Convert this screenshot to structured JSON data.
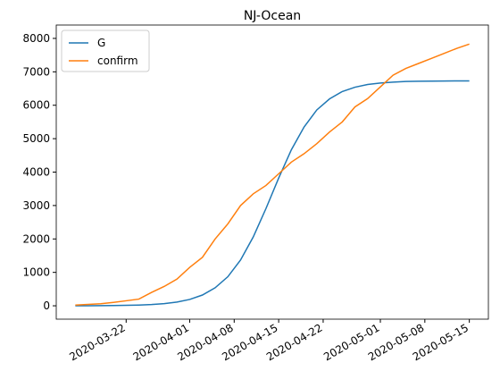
{
  "chart_data": {
    "type": "line",
    "title": "NJ-Ocean",
    "x": [
      "2020-03-14",
      "2020-03-16",
      "2020-03-18",
      "2020-03-20",
      "2020-03-22",
      "2020-03-24",
      "2020-03-26",
      "2020-03-28",
      "2020-03-30",
      "2020-04-01",
      "2020-04-03",
      "2020-04-05",
      "2020-04-07",
      "2020-04-09",
      "2020-04-11",
      "2020-04-13",
      "2020-04-15",
      "2020-04-17",
      "2020-04-19",
      "2020-04-21",
      "2020-04-23",
      "2020-04-25",
      "2020-04-27",
      "2020-04-29",
      "2020-05-01",
      "2020-05-03",
      "2020-05-05",
      "2020-05-07",
      "2020-05-09",
      "2020-05-11",
      "2020-05-13",
      "2020-05-15"
    ],
    "series": [
      {
        "name": "G",
        "color": "#1f77b4",
        "values": [
          1,
          2.5,
          4,
          7.5,
          13,
          22,
          38,
          65,
          112,
          190,
          322,
          538,
          870,
          1370,
          2060,
          2910,
          3820,
          4670,
          5350,
          5860,
          6190,
          6410,
          6540,
          6620,
          6665,
          6690,
          6710,
          6718,
          6723,
          6726,
          6728,
          6729
        ]
      },
      {
        "name": "confirm",
        "color": "#ff7f0e",
        "values": [
          20,
          40,
          60,
          100,
          150,
          200,
          400,
          580,
          800,
          1150,
          1450,
          2000,
          2450,
          3000,
          3350,
          3600,
          3950,
          4300,
          4550,
          4850,
          5200,
          5500,
          5950,
          6200,
          6550,
          6900,
          7100,
          7250,
          7400,
          7550,
          7700,
          7830
        ]
      }
    ],
    "xlim": [
      "2020-03-11",
      "2020-05-18"
    ],
    "xticks": [
      "2020-03-22",
      "2020-04-01",
      "2020-04-08",
      "2020-04-15",
      "2020-04-22",
      "2020-05-01",
      "2020-05-08",
      "2020-05-15"
    ],
    "ylim": [
      -400,
      8400
    ],
    "yticks": [
      0,
      1000,
      2000,
      3000,
      4000,
      5000,
      6000,
      7000,
      8000
    ],
    "grid": false,
    "legend": "upper-left"
  }
}
